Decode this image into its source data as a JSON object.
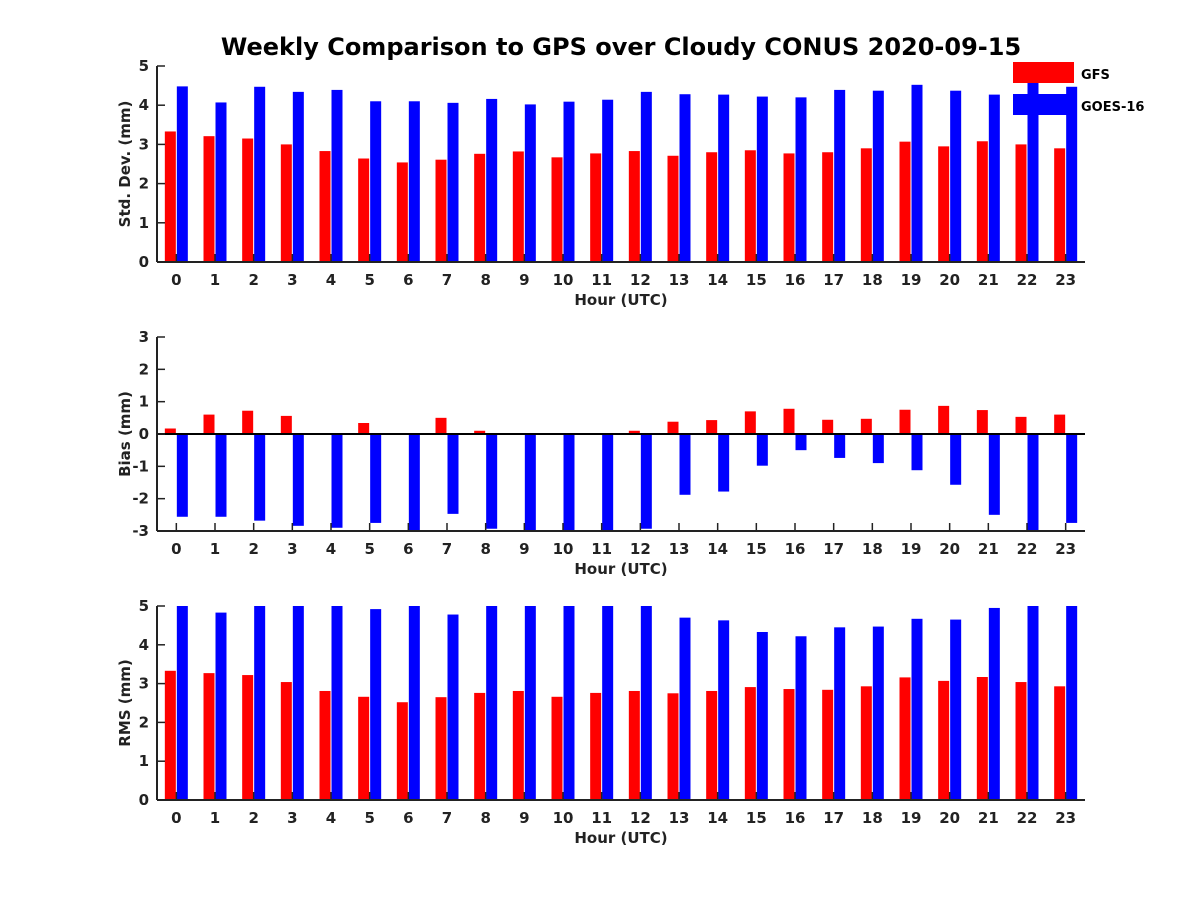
{
  "figure": {
    "title": "Weekly Comparison to GPS over Cloudy CONUS 2020-09-15"
  },
  "legend": {
    "placement": "top-right",
    "entries": [
      {
        "label": "GFS",
        "color": "#ff0000"
      },
      {
        "label": "GOES-16",
        "color": "#0000ff"
      }
    ]
  },
  "chart_data": [
    {
      "type": "bar",
      "xlabel": "Hour (UTC)",
      "ylabel": "Std. Dev. (mm)",
      "ylim": [
        0,
        5
      ],
      "yticks": [
        0,
        1,
        2,
        3,
        4,
        5
      ],
      "categories": [
        "0",
        "1",
        "2",
        "3",
        "4",
        "5",
        "6",
        "7",
        "8",
        "9",
        "10",
        "11",
        "12",
        "13",
        "14",
        "15",
        "16",
        "17",
        "18",
        "19",
        "20",
        "21",
        "22",
        "23"
      ],
      "series": [
        {
          "name": "GFS",
          "color": "#ff0000",
          "values": [
            3.33,
            3.21,
            3.15,
            3.0,
            2.83,
            2.64,
            2.54,
            2.61,
            2.76,
            2.82,
            2.67,
            2.77,
            2.83,
            2.71,
            2.8,
            2.85,
            2.77,
            2.8,
            2.9,
            3.07,
            2.95,
            3.08,
            3.0,
            2.9
          ]
        },
        {
          "name": "GOES-16",
          "color": "#0000ff",
          "values": [
            4.48,
            4.07,
            4.47,
            4.34,
            4.39,
            4.1,
            4.1,
            4.06,
            4.16,
            4.02,
            4.09,
            4.14,
            4.34,
            4.28,
            4.27,
            4.22,
            4.2,
            4.39,
            4.37,
            4.52,
            4.37,
            4.27,
            4.57,
            4.47
          ]
        }
      ]
    },
    {
      "type": "bar",
      "xlabel": "Hour (UTC)",
      "ylabel": "Bias (mm)",
      "ylim": [
        -3,
        3
      ],
      "yticks": [
        -3,
        -2,
        -1,
        0,
        1,
        2,
        3
      ],
      "categories": [
        "0",
        "1",
        "2",
        "3",
        "4",
        "5",
        "6",
        "7",
        "8",
        "9",
        "10",
        "11",
        "12",
        "13",
        "14",
        "15",
        "16",
        "17",
        "18",
        "19",
        "20",
        "21",
        "22",
        "23"
      ],
      "series": [
        {
          "name": "GFS",
          "color": "#ff0000",
          "values": [
            0.17,
            0.6,
            0.72,
            0.56,
            0.0,
            0.34,
            0.0,
            0.5,
            0.1,
            0.03,
            0.02,
            -0.02,
            0.1,
            0.38,
            0.43,
            0.7,
            0.78,
            0.44,
            0.47,
            0.75,
            0.87,
            0.74,
            0.53,
            0.6
          ]
        },
        {
          "name": "GOES-16",
          "color": "#0000ff",
          "values": [
            -2.56,
            -2.56,
            -2.68,
            -2.84,
            -2.9,
            -2.75,
            -3.0,
            -2.47,
            -2.93,
            -2.98,
            -2.98,
            -3.0,
            -2.93,
            -1.88,
            -1.78,
            -0.98,
            -0.5,
            -0.74,
            -0.9,
            -1.12,
            -1.57,
            -2.5,
            -3.0,
            -2.75
          ]
        }
      ]
    },
    {
      "type": "bar",
      "xlabel": "Hour (UTC)",
      "ylabel": "RMS (mm)",
      "ylim": [
        0,
        5
      ],
      "yticks": [
        0,
        1,
        2,
        3,
        4,
        5
      ],
      "categories": [
        "0",
        "1",
        "2",
        "3",
        "4",
        "5",
        "6",
        "7",
        "8",
        "9",
        "10",
        "11",
        "12",
        "13",
        "14",
        "15",
        "16",
        "17",
        "18",
        "19",
        "20",
        "21",
        "22",
        "23"
      ],
      "series": [
        {
          "name": "GFS",
          "color": "#ff0000",
          "values": [
            3.33,
            3.27,
            3.22,
            3.04,
            2.81,
            2.66,
            2.52,
            2.65,
            2.76,
            2.81,
            2.66,
            2.76,
            2.81,
            2.75,
            2.81,
            2.91,
            2.86,
            2.84,
            2.93,
            3.16,
            3.07,
            3.17,
            3.04,
            2.93
          ]
        },
        {
          "name": "GOES-16",
          "color": "#0000ff",
          "values": [
            5.0,
            4.83,
            5.0,
            5.0,
            5.0,
            4.92,
            5.0,
            4.78,
            5.0,
            5.0,
            5.0,
            5.0,
            5.0,
            4.7,
            4.63,
            4.33,
            4.22,
            4.45,
            4.47,
            4.67,
            4.65,
            4.95,
            5.0,
            5.0
          ]
        }
      ]
    }
  ]
}
